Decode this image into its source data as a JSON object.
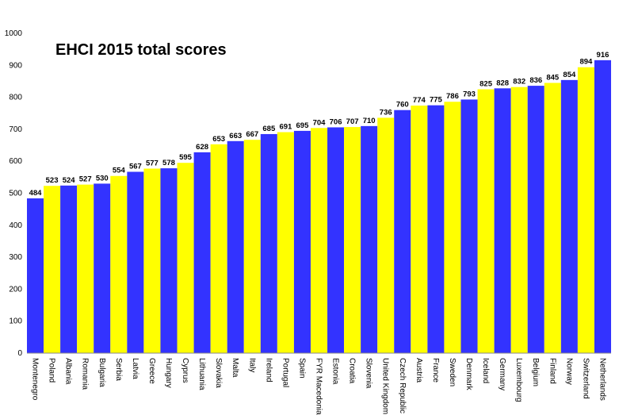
{
  "chart_data": {
    "type": "bar",
    "title": "EHCI 2015 total scores",
    "categories": [
      "Montenegro",
      "Poland",
      "Albania",
      "Romania",
      "Bulgaria",
      "Serbia",
      "Latvia",
      "Greece",
      "Hungary",
      "Cyprus",
      "Lithuania",
      "Slovakia",
      "Malta",
      "Italy",
      "Ireland",
      "Portugal",
      "Spain",
      "FYR Macedonia",
      "Estonia",
      "Croatia",
      "Slovenia",
      "United Kingdom",
      "Czech Republic",
      "Austria",
      "France",
      "Sweden",
      "Denmark",
      "Iceland",
      "Germany",
      "Luxembourg",
      "Belgium",
      "Finland",
      "Norway",
      "Switzerland",
      "Netherlands"
    ],
    "values": [
      484,
      523,
      524,
      527,
      530,
      554,
      567,
      577,
      578,
      595,
      628,
      653,
      663,
      667,
      685,
      691,
      695,
      704,
      706,
      707,
      710,
      736,
      760,
      774,
      775,
      786,
      793,
      825,
      828,
      832,
      836,
      845,
      854,
      894,
      916
    ],
    "colors": [
      "#3333ff",
      "#ffff00"
    ],
    "ylim": [
      0,
      1000
    ],
    "yticks": [
      0,
      100,
      200,
      300,
      400,
      500,
      600,
      700,
      800,
      900,
      1000
    ],
    "grid": false
  }
}
